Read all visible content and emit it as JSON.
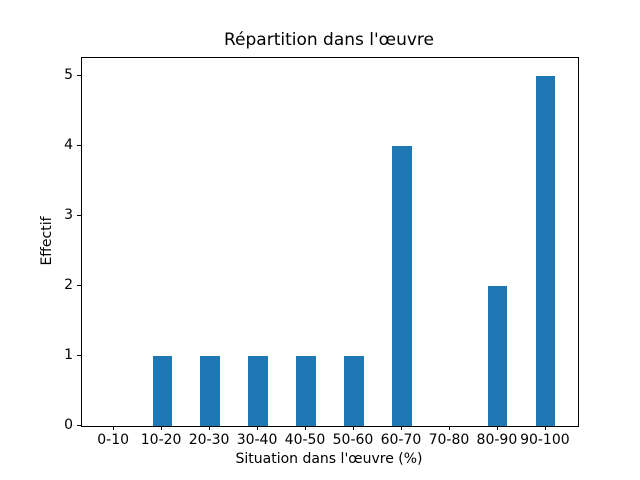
{
  "figure": {
    "background": "#ffffff",
    "text_color": "#000000"
  },
  "chart_data": {
    "type": "bar",
    "title": "Répartition dans l'œuvre",
    "xlabel": "Situation dans l'œuvre (%)",
    "ylabel": "Effectif",
    "categories": [
      "0-10",
      "10-20",
      "20-30",
      "30-40",
      "40-50",
      "50-60",
      "60-70",
      "70-80",
      "80-90",
      "90-100"
    ],
    "values": [
      0,
      1,
      1,
      1,
      1,
      1,
      4,
      0,
      2,
      5
    ],
    "yticks": [
      0,
      1,
      2,
      3,
      4,
      5
    ],
    "ylim": [
      0,
      5.25
    ],
    "xlim": [
      -0.67,
      9.67
    ],
    "bar_width": 0.4,
    "bar_color": "#1f77b4",
    "grid": false,
    "legend": "none"
  }
}
